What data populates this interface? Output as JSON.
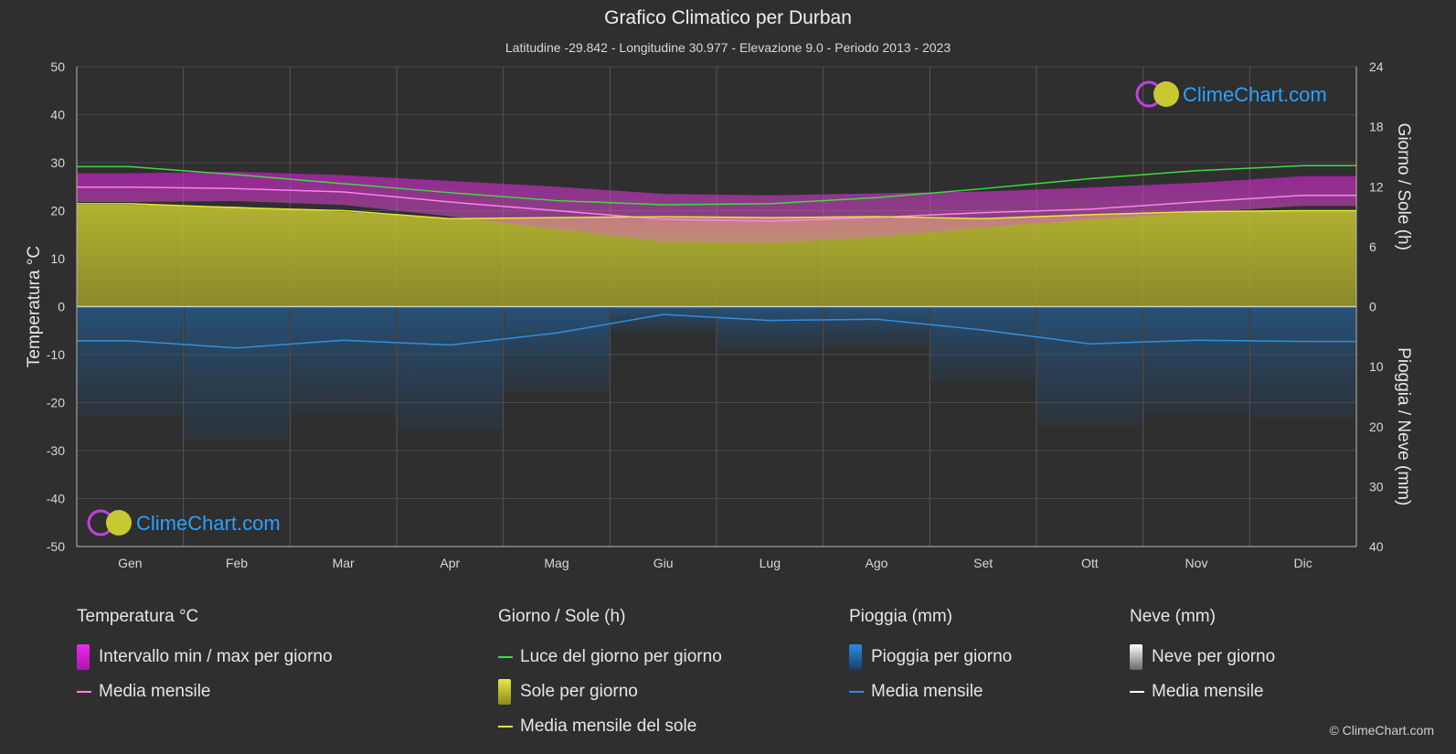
{
  "header": {
    "title": "Grafico Climatico per Durban",
    "subtitle": "Latitudine -29.842 - Longitudine 30.977 - Elevazione 9.0 - Periodo 2013 - 2023"
  },
  "watermark": "ClimeChart.com",
  "copyright": "© ClimeChart.com",
  "colors": {
    "background": "#2f2f2f",
    "temp_range": "#d21ed2",
    "temp_mean": "#ff7ff0",
    "daylight": "#3ddc3d",
    "sunshine_fill": "#b4b41e",
    "sunshine_mean": "#e6e632",
    "rain": "#1f78c8",
    "rain_mean": "#2f8fe0",
    "snow_mean": "#ffffff"
  },
  "legend": {
    "temperature": {
      "heading": "Temperatura °C",
      "range_label": "Intervallo min / max per giorno",
      "mean_label": "Media mensile"
    },
    "sun": {
      "heading": "Giorno / Sole (h)",
      "daylight_label": "Luce del giorno per giorno",
      "sunshine_label": "Sole per giorno",
      "sunshine_mean_label": "Media mensile del sole"
    },
    "rain": {
      "heading": "Pioggia (mm)",
      "daily_label": "Pioggia per giorno",
      "mean_label": "Media mensile"
    },
    "snow": {
      "heading": "Neve (mm)",
      "daily_label": "Neve per giorno",
      "mean_label": "Media mensile"
    }
  },
  "chart_data": {
    "type": "area",
    "categories": [
      "Gen",
      "Feb",
      "Mar",
      "Apr",
      "Mag",
      "Giu",
      "Lug",
      "Ago",
      "Set",
      "Ott",
      "Nov",
      "Dic"
    ],
    "axes": {
      "left": {
        "label": "Temperatura °C",
        "range": [
          -50,
          50
        ],
        "ticks": [
          50,
          40,
          30,
          20,
          10,
          0,
          -10,
          -20,
          -30,
          -40,
          -50
        ]
      },
      "right_top": {
        "label": "Giorno / Sole (h)",
        "range": [
          0,
          24
        ],
        "ticks": [
          24,
          18,
          12,
          6,
          0
        ]
      },
      "right_bottom": {
        "label": "Pioggia / Neve (mm)",
        "range": [
          0,
          40
        ],
        "ticks": [
          0,
          10,
          20,
          30,
          40
        ]
      }
    },
    "grid": true,
    "series": [
      {
        "name": "Intervallo min / max per giorno",
        "kind": "range",
        "unit": "°C",
        "min": [
          21.8,
          22.0,
          21.2,
          18.8,
          16.2,
          13.5,
          13.3,
          14.5,
          16.5,
          18.2,
          19.6,
          21.0
        ],
        "max": [
          27.8,
          28.1,
          27.4,
          26.2,
          25.0,
          23.5,
          23.2,
          23.6,
          24.0,
          24.8,
          25.8,
          27.2
        ]
      },
      {
        "name": "Media mensile",
        "kind": "temperature_mean",
        "unit": "°C",
        "values": [
          24.9,
          24.6,
          23.9,
          21.8,
          20.0,
          18.2,
          17.8,
          18.6,
          19.6,
          20.3,
          21.8,
          23.2
        ]
      },
      {
        "name": "Luce del giorno per giorno",
        "kind": "daylight",
        "unit": "h",
        "values": [
          14.0,
          13.2,
          12.3,
          11.4,
          10.6,
          10.2,
          10.3,
          10.9,
          11.8,
          12.8,
          13.6,
          14.1
        ]
      },
      {
        "name": "Sole per giorno",
        "kind": "sunshine",
        "unit": "h",
        "values": [
          10.2,
          10.0,
          9.5,
          8.8,
          8.9,
          9.0,
          8.9,
          9.0,
          8.8,
          9.2,
          9.5,
          9.6
        ]
      },
      {
        "name": "Media mensile del sole",
        "kind": "sunshine_mean",
        "unit": "h",
        "values": [
          10.3,
          9.9,
          9.6,
          8.8,
          8.9,
          9.0,
          8.9,
          9.0,
          8.8,
          9.2,
          9.5,
          9.6
        ]
      },
      {
        "name": "Media mensile",
        "kind": "rain_mean",
        "unit": "mm",
        "values": [
          5.7,
          6.9,
          5.6,
          6.4,
          4.4,
          1.3,
          2.3,
          2.1,
          3.9,
          6.2,
          5.6,
          5.8
        ]
      },
      {
        "name": "Media mensile",
        "kind": "snow_mean",
        "unit": "mm",
        "values": [
          0,
          0,
          0,
          0,
          0,
          0,
          0,
          0,
          0,
          0,
          0,
          0
        ]
      }
    ]
  }
}
